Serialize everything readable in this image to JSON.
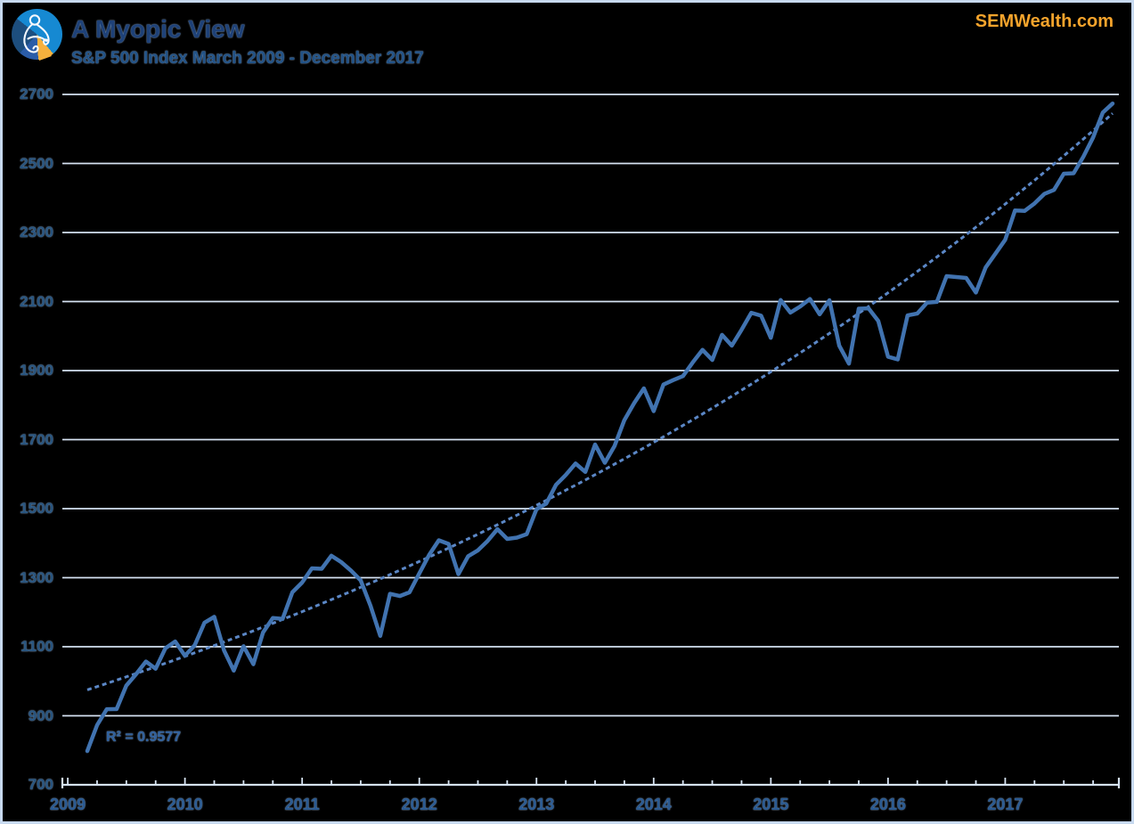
{
  "header": {
    "title": "A Myopic View",
    "subtitle": "S&P 500 Index March 2009 - December 2017",
    "watermark": "SEMWealth.com",
    "logo": "sem-pie-logo"
  },
  "colors": {
    "background": "#000000",
    "frame_border": "#C7D9EF",
    "title": "#1E4178",
    "subtitle": "#215287",
    "watermark": "#F6A42C",
    "gridline": "#D5E2F2",
    "axis_labels": "#27547F",
    "series_line": "#4173B0",
    "trendline": "#5B87C6",
    "annotation": "#2E5F9C"
  },
  "chart_data": {
    "type": "line",
    "title": "A Myopic View",
    "subtitle": "S&P 500 Index March 2009 - December 2017",
    "frequency": "monthly",
    "x_start": "2009-03",
    "x_end": "2017-12",
    "x_year_labels": [
      "2009",
      "2010",
      "2011",
      "2012",
      "2013",
      "2014",
      "2015",
      "2016",
      "2017"
    ],
    "y_ticks": [
      "700",
      "900",
      "1100",
      "1300",
      "1500",
      "1700",
      "1900",
      "2100",
      "2300",
      "2500",
      "2700"
    ],
    "ylim": [
      700,
      2700
    ],
    "grid": "horizontal-only",
    "legend": "none",
    "series": [
      {
        "name": "S&P 500 Index",
        "color": "#4173B0",
        "values": [
          797.87,
          872.81,
          919.14,
          919.32,
          987.48,
          1020.62,
          1057.08,
          1036.19,
          1095.63,
          1115.1,
          1073.87,
          1104.49,
          1169.43,
          1186.69,
          1089.41,
          1030.71,
          1101.6,
          1049.33,
          1141.2,
          1183.26,
          1180.55,
          1257.64,
          1286.12,
          1327.22,
          1325.83,
          1363.61,
          1345.2,
          1320.64,
          1292.28,
          1218.89,
          1131.42,
          1253.3,
          1246.96,
          1257.6,
          1312.41,
          1365.68,
          1408.47,
          1397.91,
          1310.33,
          1362.16,
          1379.32,
          1406.58,
          1440.67,
          1412.16,
          1416.18,
          1426.19,
          1498.11,
          1514.68,
          1569.19,
          1597.57,
          1630.74,
          1606.28,
          1685.73,
          1632.97,
          1681.55,
          1756.54,
          1805.81,
          1848.36,
          1782.59,
          1859.45,
          1872.34,
          1883.95,
          1923.57,
          1960.23,
          1930.67,
          2003.37,
          1972.29,
          2018.05,
          2067.56,
          2058.9,
          1994.99,
          2104.5,
          2067.89,
          2085.51,
          2107.39,
          2063.11,
          2103.84,
          1972.18,
          1920.03,
          2079.36,
          2080.41,
          2043.94,
          1940.24,
          1932.23,
          2059.74,
          2065.3,
          2096.96,
          2098.86,
          2173.6,
          2170.95,
          2168.27,
          2126.15,
          2198.81,
          2238.83,
          2278.87,
          2363.64,
          2362.72,
          2384.2,
          2411.8,
          2423.41,
          2470.3,
          2471.65,
          2519.36,
          2575.26,
          2647.58,
          2673.61
        ]
      },
      {
        "name": "Exponential trendline",
        "style": "dashed",
        "color": "#5B87C6",
        "fit": "exponential",
        "start_value": 975,
        "end_value": 2645
      }
    ],
    "annotation": {
      "text": "R² = 0.9577"
    }
  }
}
